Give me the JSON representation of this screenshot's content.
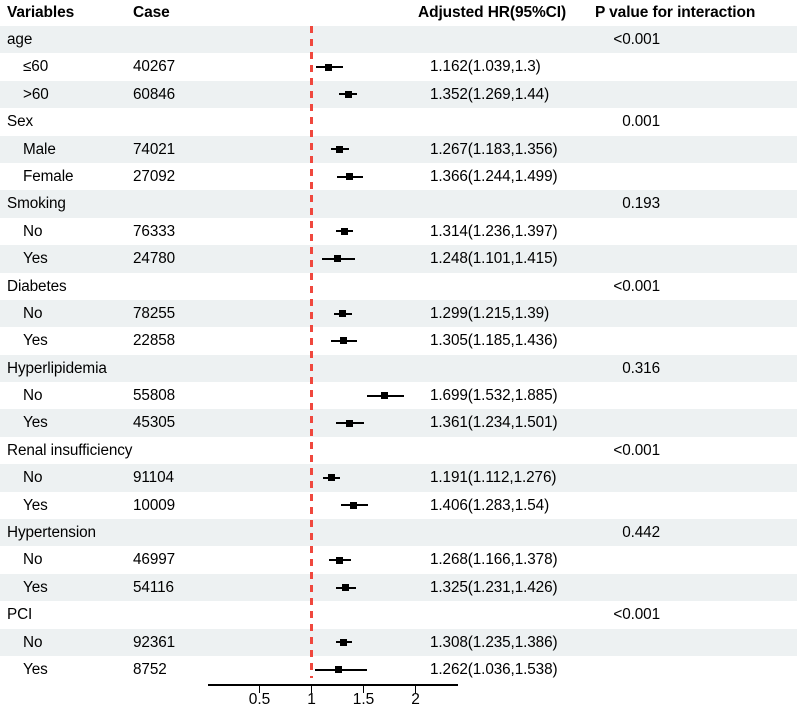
{
  "colors": {
    "stripe": "#edf1f2",
    "reference_line_red": "#f0483e",
    "marker_black": "#000000",
    "text": "#000000"
  },
  "chart_data": {
    "type": "scatter",
    "variant": "forest-plot",
    "columns": [
      "Variables",
      "Case",
      "Adjusted HR(95%CI)",
      "P value for interaction"
    ],
    "reference_line": 1,
    "x_axis": {
      "ticks": [
        "0.5",
        "1",
        "1.5",
        "2"
      ],
      "range": [
        0,
        2.41
      ],
      "grid": false
    },
    "groups": [
      {
        "variable": "age",
        "p_interaction": "<0.001",
        "subgroups": [
          {
            "label": "≤60",
            "case": "40267",
            "hr": 1.162,
            "ci_low": 1.039,
            "ci_high": 1.3,
            "hr_text": "1.162(1.039,1.3)"
          },
          {
            "label": ">60",
            "case": "60846",
            "hr": 1.352,
            "ci_low": 1.269,
            "ci_high": 1.44,
            "hr_text": "1.352(1.269,1.44)"
          }
        ]
      },
      {
        "variable": "Sex",
        "p_interaction": "0.001",
        "subgroups": [
          {
            "label": "Male",
            "case": "74021",
            "hr": 1.267,
            "ci_low": 1.183,
            "ci_high": 1.356,
            "hr_text": "1.267(1.183,1.356)"
          },
          {
            "label": "Female",
            "case": "27092",
            "hr": 1.366,
            "ci_low": 1.244,
            "ci_high": 1.499,
            "hr_text": "1.366(1.244,1.499)"
          }
        ]
      },
      {
        "variable": "Smoking",
        "p_interaction": "0.193",
        "subgroups": [
          {
            "label": "No",
            "case": "76333",
            "hr": 1.314,
            "ci_low": 1.236,
            "ci_high": 1.397,
            "hr_text": "1.314(1.236,1.397)"
          },
          {
            "label": "Yes",
            "case": "24780",
            "hr": 1.248,
            "ci_low": 1.101,
            "ci_high": 1.415,
            "hr_text": "1.248(1.101,1.415)"
          }
        ]
      },
      {
        "variable": "Diabetes",
        "p_interaction": "<0.001",
        "subgroups": [
          {
            "label": "No",
            "case": "78255",
            "hr": 1.299,
            "ci_low": 1.215,
            "ci_high": 1.39,
            "hr_text": "1.299(1.215,1.39)"
          },
          {
            "label": "Yes",
            "case": "22858",
            "hr": 1.305,
            "ci_low": 1.185,
            "ci_high": 1.436,
            "hr_text": "1.305(1.185,1.436)"
          }
        ]
      },
      {
        "variable": "Hyperlipidemia",
        "p_interaction": "0.316",
        "subgroups": [
          {
            "label": "No",
            "case": "55808",
            "hr": 1.699,
            "ci_low": 1.532,
            "ci_high": 1.885,
            "hr_text": "1.699(1.532,1.885)"
          },
          {
            "label": "Yes",
            "case": "45305",
            "hr": 1.361,
            "ci_low": 1.234,
            "ci_high": 1.501,
            "hr_text": "1.361(1.234,1.501)"
          }
        ]
      },
      {
        "variable": "Renal insufficiency",
        "p_interaction": "<0.001",
        "subgroups": [
          {
            "label": "No",
            "case": "91104",
            "hr": 1.191,
            "ci_low": 1.112,
            "ci_high": 1.276,
            "hr_text": "1.191(1.112,1.276)"
          },
          {
            "label": "Yes",
            "case": "10009",
            "hr": 1.406,
            "ci_low": 1.283,
            "ci_high": 1.54,
            "hr_text": "1.406(1.283,1.54)"
          }
        ]
      },
      {
        "variable": "Hypertension",
        "p_interaction": "0.442",
        "subgroups": [
          {
            "label": "No",
            "case": "46997",
            "hr": 1.268,
            "ci_low": 1.166,
            "ci_high": 1.378,
            "hr_text": "1.268(1.166,1.378)"
          },
          {
            "label": "Yes",
            "case": "54116",
            "hr": 1.325,
            "ci_low": 1.231,
            "ci_high": 1.426,
            "hr_text": "1.325(1.231,1.426)"
          }
        ]
      },
      {
        "variable": "PCI",
        "p_interaction": "<0.001",
        "subgroups": [
          {
            "label": "No",
            "case": "92361",
            "hr": 1.308,
            "ci_low": 1.235,
            "ci_high": 1.386,
            "hr_text": "1.308(1.235,1.386)"
          },
          {
            "label": "Yes",
            "case": "8752",
            "hr": 1.262,
            "ci_low": 1.036,
            "ci_high": 1.538,
            "hr_text": "1.262(1.036,1.538)"
          }
        ]
      }
    ]
  }
}
